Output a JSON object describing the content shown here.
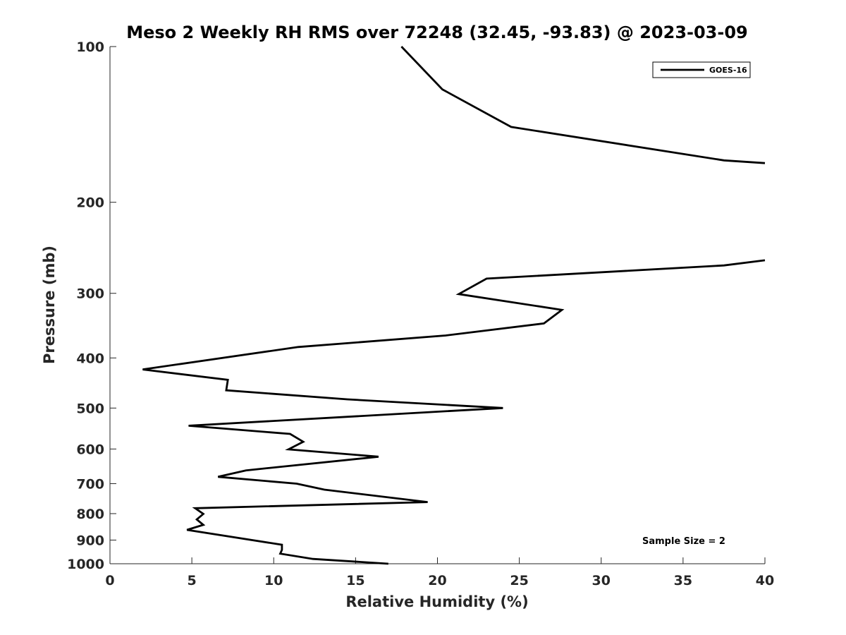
{
  "chart_data": {
    "type": "line",
    "title": "Meso 2 Weekly RH RMS over 72248 (32.45, -93.83) @ 2023-03-09",
    "xlabel": "Relative Humidity (%)",
    "ylabel": "Pressure (mb)",
    "xlim": [
      0,
      40
    ],
    "ylim": [
      100,
      1000
    ],
    "y_scale": "log",
    "y_reversed": true,
    "x_ticks": [
      "0",
      "5",
      "10",
      "15",
      "20",
      "25",
      "30",
      "35",
      "40"
    ],
    "y_ticks": [
      "100",
      "200",
      "300",
      "400",
      "500",
      "600",
      "700",
      "800",
      "900",
      "1000"
    ],
    "grid": false,
    "legend_position": "top-right",
    "annotation": "Sample Size = 2",
    "series": [
      {
        "name": "GOES-16",
        "color": "#000000",
        "segments": [
          [
            {
              "x": 17.8,
              "y": 100
            },
            {
              "x": 20.3,
              "y": 121
            },
            {
              "x": 24.5,
              "y": 143
            },
            {
              "x": 37.5,
              "y": 166
            },
            {
              "x": 40,
              "y": 168
            }
          ],
          [
            {
              "x": 40,
              "y": 259
            },
            {
              "x": 37.5,
              "y": 265
            },
            {
              "x": 23.0,
              "y": 281
            },
            {
              "x": 21.3,
              "y": 301
            },
            {
              "x": 27.6,
              "y": 323
            },
            {
              "x": 26.5,
              "y": 343
            },
            {
              "x": 20.5,
              "y": 362
            },
            {
              "x": 11.5,
              "y": 381
            },
            {
              "x": 2.0,
              "y": 421
            },
            {
              "x": 7.2,
              "y": 441
            },
            {
              "x": 7.1,
              "y": 462
            },
            {
              "x": 14.5,
              "y": 481
            },
            {
              "x": 24.0,
              "y": 500
            },
            {
              "x": 4.8,
              "y": 541
            },
            {
              "x": 11.0,
              "y": 561
            },
            {
              "x": 11.8,
              "y": 581
            },
            {
              "x": 10.9,
              "y": 601
            },
            {
              "x": 16.4,
              "y": 621
            },
            {
              "x": 8.3,
              "y": 660
            },
            {
              "x": 6.6,
              "y": 679
            },
            {
              "x": 11.4,
              "y": 700
            },
            {
              "x": 13.1,
              "y": 719
            },
            {
              "x": 19.4,
              "y": 760
            },
            {
              "x": 5.2,
              "y": 781
            },
            {
              "x": 5.7,
              "y": 801
            },
            {
              "x": 5.3,
              "y": 821
            },
            {
              "x": 5.7,
              "y": 841
            },
            {
              "x": 4.7,
              "y": 860
            },
            {
              "x": 10.5,
              "y": 919
            },
            {
              "x": 10.5,
              "y": 940
            },
            {
              "x": 10.4,
              "y": 956
            },
            {
              "x": 12.4,
              "y": 979
            },
            {
              "x": 17.0,
              "y": 1000
            }
          ]
        ]
      }
    ]
  }
}
